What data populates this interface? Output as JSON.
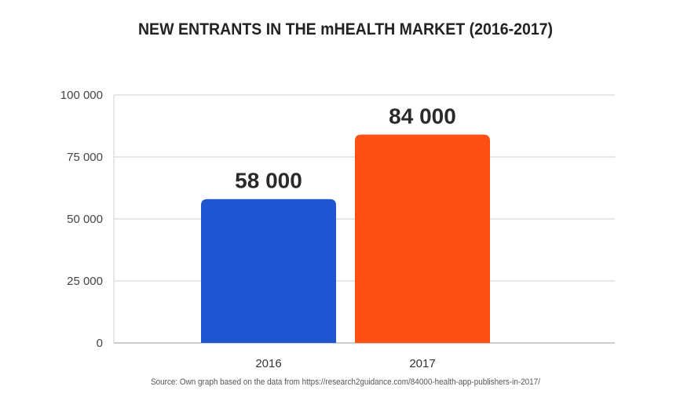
{
  "title": "NEW ENTRANTS IN THE mHEALTH MARKET (2016-2017)",
  "source": "Source: Own graph based on the data from https://research2guidance.com/84000-health-app-publishers-in-2017/",
  "chart_data": {
    "type": "bar",
    "title": "NEW ENTRANTS IN THE mHEALTH MARKET (2016-2017)",
    "categories": [
      "2016",
      "2017"
    ],
    "values": [
      58000,
      84000
    ],
    "data_labels": [
      "58 000",
      "84 000"
    ],
    "colors": [
      "#1f55d1",
      "#ff5014"
    ],
    "ylim": [
      0,
      100000
    ],
    "yticks": [
      0,
      25000,
      50000,
      75000,
      100000
    ],
    "ytick_labels": [
      "0",
      "25 000",
      "50 000",
      "75 000",
      "100 000"
    ],
    "grid": true,
    "xlabel": "",
    "ylabel": ""
  }
}
